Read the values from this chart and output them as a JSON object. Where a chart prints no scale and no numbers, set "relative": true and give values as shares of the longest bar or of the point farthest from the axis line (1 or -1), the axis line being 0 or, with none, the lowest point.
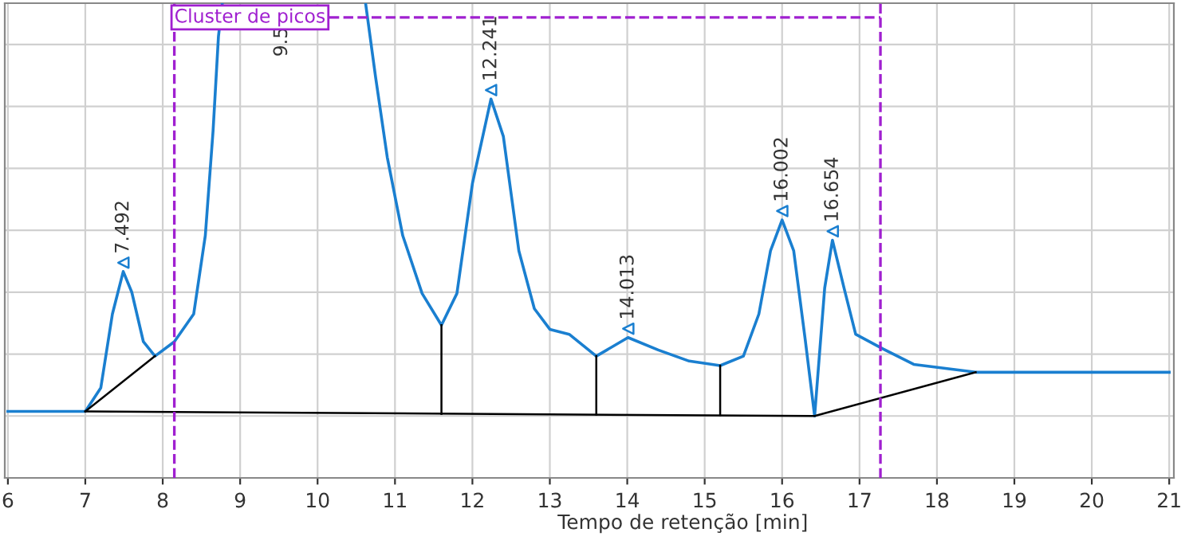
{
  "chart_data": {
    "type": "line",
    "relative": true,
    "xlabel": "Tempo de retenção [min]",
    "xlim": [
      5.96,
      21.06
    ],
    "xticks": [
      6,
      7,
      8,
      9,
      10,
      11,
      12,
      13,
      14,
      15,
      16,
      17,
      18,
      19,
      20,
      21
    ],
    "tick_labels": "x",
    "grid": true,
    "marker": "none",
    "line_style": "solid",
    "series": [
      {
        "color": "#1a7fd0",
        "x": [
          6.0,
          7.0,
          7.2,
          7.35,
          7.49,
          7.6,
          7.75,
          7.9,
          8.15,
          8.4,
          8.55,
          8.65,
          8.72,
          8.77,
          9.5,
          10.62,
          10.75,
          10.9,
          11.1,
          11.35,
          11.6,
          11.8,
          12.0,
          12.24,
          12.4,
          12.6,
          12.8,
          13.0,
          13.25,
          13.6,
          14.01,
          14.4,
          14.8,
          15.2,
          15.5,
          15.7,
          15.85,
          16.0,
          16.15,
          16.3,
          16.42,
          16.55,
          16.65,
          16.8,
          16.95,
          17.3,
          17.7,
          18.5,
          21.0
        ],
        "values": [
          0.011,
          0.011,
          0.068,
          0.247,
          0.35,
          0.3,
          0.18,
          0.145,
          0.18,
          0.247,
          0.437,
          0.69,
          0.92,
          1.0,
          null,
          1.0,
          0.82,
          0.627,
          0.437,
          0.297,
          0.22,
          0.297,
          0.563,
          0.768,
          0.677,
          0.4,
          0.26,
          0.21,
          0.198,
          0.145,
          0.19,
          0.16,
          0.133,
          0.122,
          0.145,
          0.247,
          0.4,
          0.475,
          0.4,
          0.183,
          0.0,
          0.31,
          0.426,
          0.31,
          0.198,
          0.163,
          0.125,
          0.106,
          0.106
        ]
      },
      {
        "color": "#000000",
        "x": [
          7.0,
          16.42,
          18.5
        ],
        "values": [
          0.011,
          0.0,
          0.106
        ]
      },
      {
        "color": "#000000",
        "x": [
          7.0,
          7.9
        ],
        "values": [
          0.011,
          0.145
        ]
      },
      {
        "color": "#000000",
        "x": [
          11.6,
          11.6
        ],
        "values": [
          0.005,
          0.22
        ]
      },
      {
        "color": "#000000",
        "x": [
          13.6,
          13.6
        ],
        "values": [
          0.003,
          0.145
        ]
      },
      {
        "color": "#000000",
        "x": [
          15.2,
          15.2
        ],
        "values": [
          0.002,
          0.122
        ]
      }
    ],
    "ref_lines": [
      {
        "axis": "x",
        "value": 8.15,
        "label": "Cluster de picos",
        "color": "#a020d0",
        "line_style": "dashed"
      },
      {
        "axis": "x",
        "value": 17.27,
        "color": "#a020d0",
        "line_style": "dashed"
      }
    ],
    "annotations": [
      {
        "text": "7.492",
        "x": 7.492,
        "y": 0.35
      },
      "9.5",
      {
        "text": "12.241",
        "x": 12.241,
        "y": 0.768
      },
      {
        "text": "14.013",
        "x": 14.013,
        "y": 0.19
      },
      {
        "text": "16.002",
        "x": 16.002,
        "y": 0.475
      },
      {
        "text": "16.654",
        "x": 16.654,
        "y": 0.426
      }
    ]
  }
}
